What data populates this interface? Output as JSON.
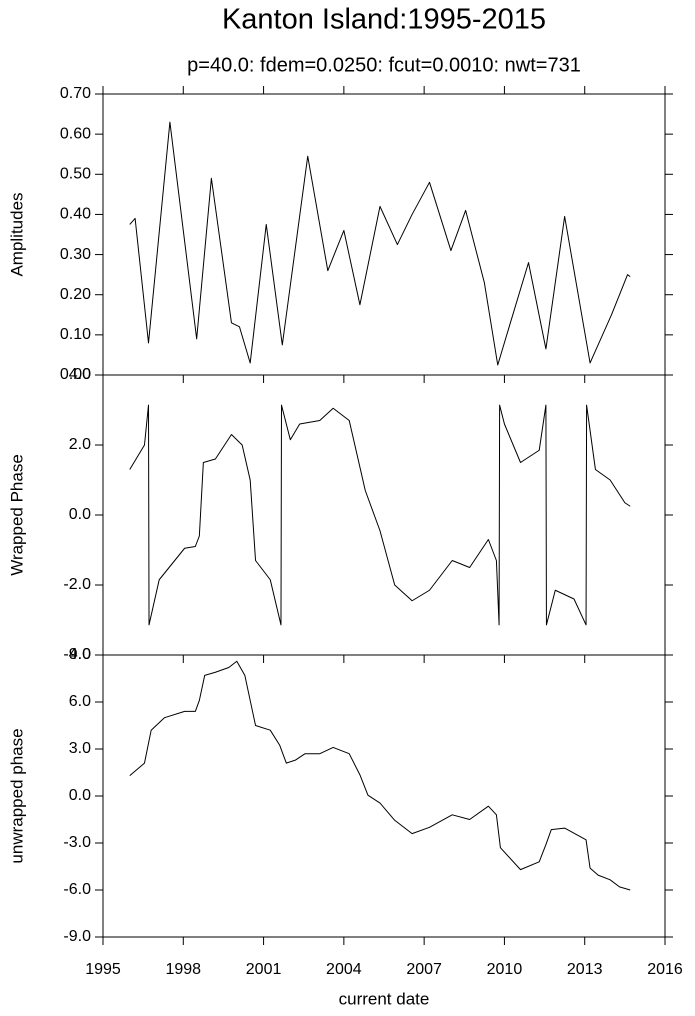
{
  "chart_data": [
    {
      "type": "line",
      "title": "Kanton Island:1995-2015",
      "subtitle": "p=40.0: fdem=0.0250: fcut=0.0010: nwt=731",
      "ylabel": "Amplitudes",
      "color": "#000000",
      "x": [
        1996.0,
        1996.2,
        1996.7,
        1997.5,
        1998.5,
        1999.05,
        1999.8,
        2000.1,
        2000.5,
        2001.1,
        2001.7,
        2002.65,
        2003.4,
        2004.0,
        2004.6,
        2005.35,
        2006.0,
        2006.55,
        2007.2,
        2008.0,
        2008.55,
        2009.25,
        2009.75,
        2010.2,
        2010.9,
        2011.55,
        2012.25,
        2013.2,
        2014.0,
        2014.6,
        2014.7
      ],
      "values": [
        0.375,
        0.39,
        0.08,
        0.63,
        0.09,
        0.49,
        0.13,
        0.12,
        0.03,
        0.375,
        0.075,
        0.545,
        0.26,
        0.36,
        0.175,
        0.42,
        0.325,
        0.4,
        0.48,
        0.31,
        0.41,
        0.23,
        0.025,
        0.125,
        0.28,
        0.065,
        0.395,
        0.03,
        0.15,
        0.25,
        0.245
      ],
      "xlim": [
        1995,
        2016
      ],
      "xticks": [
        1995,
        1998,
        2001,
        2004,
        2007,
        2010,
        2013,
        2016
      ],
      "ylim": [
        0,
        0.7
      ],
      "yticks": [
        {
          "value": 0,
          "label": "0.00"
        },
        {
          "value": 0.1,
          "label": "0.10"
        },
        {
          "value": 0.2,
          "label": "0.20"
        },
        {
          "value": 0.3,
          "label": "0.30"
        },
        {
          "value": 0.4,
          "label": "0.40"
        },
        {
          "value": 0.5,
          "label": "0.50"
        },
        {
          "value": 0.6,
          "label": "0.60"
        },
        {
          "value": 0.7,
          "label": "0.70"
        }
      ]
    },
    {
      "type": "line",
      "ylabel": "Wrapped Phase",
      "color": "#000000",
      "x": [
        1996.0,
        1996.55,
        1996.7,
        1996.72,
        1997.1,
        1998.05,
        1998.45,
        1998.6,
        1998.75,
        1999.2,
        1999.8,
        2000.2,
        2000.5,
        2000.7,
        2001.25,
        2001.65,
        2001.67,
        2002.0,
        2002.35,
        2003.1,
        2003.6,
        2004.2,
        2004.8,
        2005.35,
        2005.9,
        2006.55,
        2007.2,
        2008.05,
        2008.7,
        2009.4,
        2009.7,
        2009.8,
        2009.82,
        2010.0,
        2010.6,
        2011.3,
        2011.55,
        2011.57,
        2011.9,
        2012.6,
        2013.05,
        2013.07,
        2013.4,
        2013.95,
        2014.5,
        2014.7
      ],
      "values": [
        1.3,
        2.0,
        3.14,
        -3.14,
        -1.85,
        -0.95,
        -0.9,
        -0.6,
        1.5,
        1.6,
        2.3,
        2.0,
        1.0,
        -1.3,
        -1.85,
        -3.14,
        3.14,
        2.15,
        2.6,
        2.7,
        3.05,
        2.7,
        0.7,
        -0.45,
        -2.0,
        -2.45,
        -2.15,
        -1.3,
        -1.5,
        -0.7,
        -1.3,
        -3.14,
        3.14,
        2.6,
        1.5,
        1.85,
        3.14,
        -3.14,
        -2.15,
        -2.4,
        -3.14,
        3.14,
        1.3,
        1.0,
        0.35,
        0.25
      ],
      "xlim": [
        1995,
        2016
      ],
      "xticks": [
        1995,
        1998,
        2001,
        2004,
        2007,
        2010,
        2013,
        2016
      ],
      "ylim": [
        -4,
        4
      ],
      "yticks": [
        {
          "value": -4,
          "label": "-4.0"
        },
        {
          "value": -2,
          "label": "-2.0"
        },
        {
          "value": 0,
          "label": "0.0"
        },
        {
          "value": 2,
          "label": "2.0"
        },
        {
          "value": 4,
          "label": "4.0"
        }
      ]
    },
    {
      "type": "line",
      "ylabel": "unwrapped phase",
      "xlabel": "current date",
      "color": "#000000",
      "x": [
        1996.0,
        1996.55,
        1996.8,
        1997.3,
        1998.05,
        1998.45,
        1998.6,
        1998.8,
        1999.2,
        1999.7,
        2000.0,
        2000.3,
        2000.5,
        2000.7,
        2001.25,
        2001.6,
        2001.85,
        2002.2,
        2002.55,
        2003.1,
        2003.6,
        2004.2,
        2004.6,
        2004.9,
        2005.35,
        2005.9,
        2006.55,
        2007.2,
        2008.05,
        2008.7,
        2009.4,
        2009.7,
        2009.85,
        2010.6,
        2011.3,
        2011.55,
        2011.75,
        2012.25,
        2013.05,
        2013.2,
        2013.5,
        2013.95,
        2014.3,
        2014.7
      ],
      "values": [
        1.3,
        2.1,
        4.2,
        5.0,
        5.4,
        5.4,
        6.1,
        7.7,
        7.9,
        8.2,
        8.6,
        7.7,
        6.1,
        4.5,
        4.2,
        3.25,
        2.1,
        2.3,
        2.7,
        2.7,
        3.1,
        2.7,
        1.35,
        0.05,
        -0.45,
        -1.55,
        -2.4,
        -2.0,
        -1.2,
        -1.5,
        -0.65,
        -1.2,
        -3.3,
        -4.7,
        -4.2,
        -3.1,
        -2.15,
        -2.05,
        -2.8,
        -4.6,
        -5.05,
        -5.35,
        -5.8,
        -6.0
      ],
      "xlim": [
        1995,
        2016
      ],
      "xticks": [
        1995,
        1998,
        2001,
        2004,
        2007,
        2010,
        2013,
        2016
      ],
      "ylim": [
        -9,
        9
      ],
      "yticks": [
        {
          "value": -9,
          "label": "-9.0"
        },
        {
          "value": -6,
          "label": "-6.0"
        },
        {
          "value": -3,
          "label": "-3.0"
        },
        {
          "value": 0,
          "label": "0.0"
        },
        {
          "value": 3,
          "label": "3.0"
        },
        {
          "value": 6,
          "label": "6.0"
        },
        {
          "value": 9,
          "label": "9.0"
        }
      ]
    }
  ]
}
